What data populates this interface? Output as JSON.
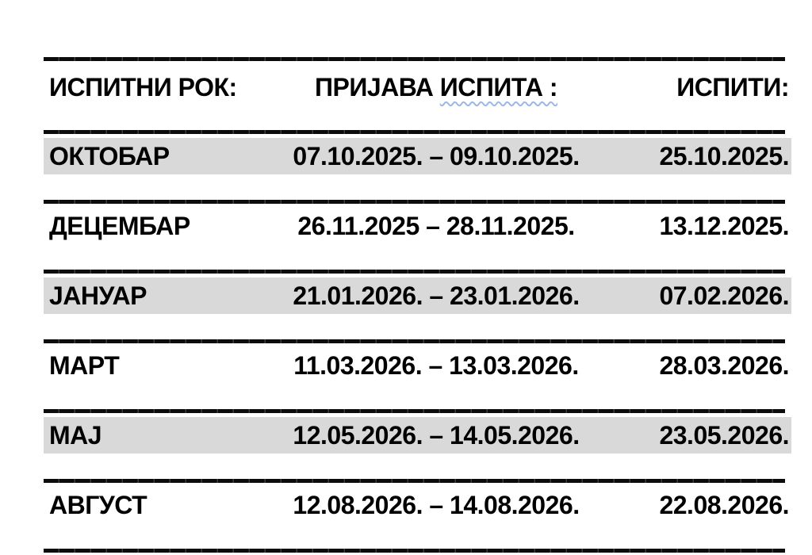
{
  "document": {
    "colors": {
      "row_highlight": "#d9d9d9",
      "rule": "#0c0c0c",
      "grammar_underline": "#9cb8e6",
      "text": "#000000",
      "paper": "#ffffff"
    },
    "table": {
      "header": {
        "term_label": "ИСПИТНИ РОК:",
        "registration_label_part1": "ПРИЈАВА ",
        "registration_label_part2": "ИСПИТА :",
        "exams_label": "ИСПИТИ:"
      },
      "rows": [
        {
          "term": "ОКТОБАР",
          "registration": "07.10.2025. – 09.10.2025.",
          "exams": "25.10.2025.",
          "shaded": true
        },
        {
          "term": "ДЕЦЕМБАР",
          "registration": "26.11.2025 – 28.11.2025.",
          "exams": "13.12.2025.",
          "shaded": false
        },
        {
          "term": "ЈАНУАР",
          "registration": "21.01.2026. – 23.01.2026.",
          "exams": "07.02.2026.",
          "shaded": true
        },
        {
          "term": "МАРТ",
          "registration": "11.03.2026. – 13.03.2026.",
          "exams": "28.03.2026.",
          "shaded": false
        },
        {
          "term": "МАЈ",
          "registration": "12.05.2026. – 14.05.2026.",
          "exams": "23.05.2026.",
          "shaded": true
        },
        {
          "term": "АВГУСТ",
          "registration": "12.08.2026. – 14.08.2026.",
          "exams": "22.08.2026.",
          "shaded": false
        }
      ]
    }
  }
}
